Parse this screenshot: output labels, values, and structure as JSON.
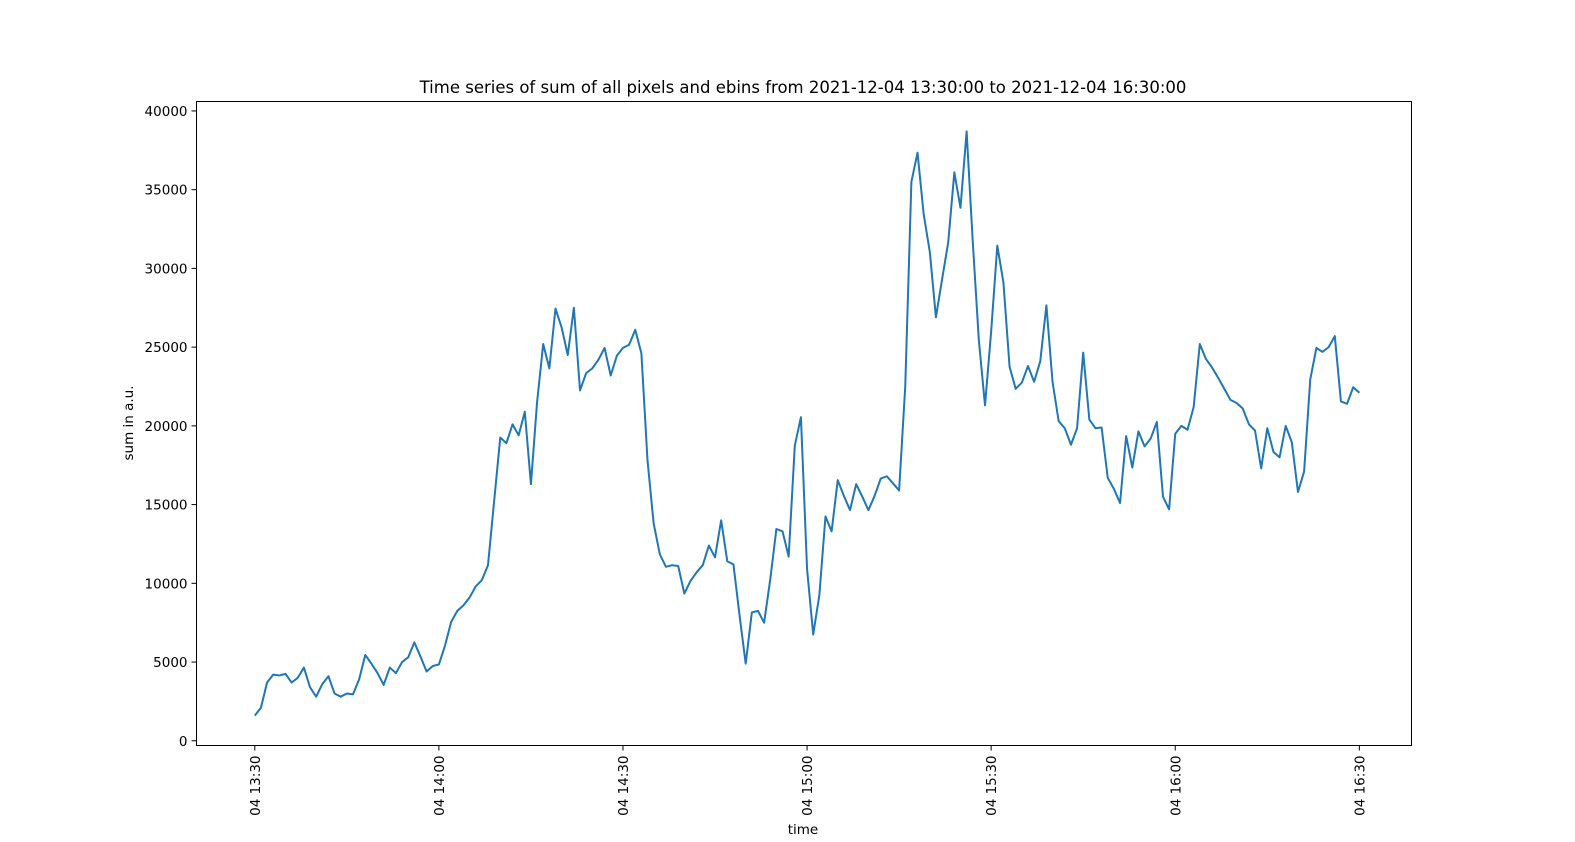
{
  "chart_data": {
    "type": "line",
    "title": "Time series of sum of all pixels and ebins from 2021-12-04 13:30:00 to 2021-12-04 16:30:00",
    "xlabel": "time",
    "ylabel": "sum in a.u.",
    "ylim": [
      -300,
      40600
    ],
    "xlim": [
      "2021-12-04 13:20:30",
      "2021-12-04 16:38:30"
    ],
    "yticks": [
      0,
      5000,
      10000,
      15000,
      20000,
      25000,
      30000,
      35000,
      40000
    ],
    "xticks": [
      {
        "t": "2021-12-04 13:30",
        "label": "04 13:30"
      },
      {
        "t": "2021-12-04 14:00",
        "label": "04 14:00"
      },
      {
        "t": "2021-12-04 14:30",
        "label": "04 14:30"
      },
      {
        "t": "2021-12-04 15:00",
        "label": "04 15:00"
      },
      {
        "t": "2021-12-04 15:30",
        "label": "04 15:30"
      },
      {
        "t": "2021-12-04 16:00",
        "label": "04 16:00"
      },
      {
        "t": "2021-12-04 16:30",
        "label": "04 16:30"
      }
    ],
    "grid": false,
    "series": [
      {
        "color": "#1f77b4",
        "start": "2021-12-04 13:30",
        "interval_minutes": 1,
        "values": [
          1600,
          2100,
          3700,
          4200,
          4150,
          4250,
          3700,
          4000,
          4650,
          3400,
          2800,
          3600,
          4100,
          3000,
          2800,
          3000,
          2950,
          3900,
          5450,
          4900,
          4300,
          3550,
          4650,
          4300,
          5000,
          5300,
          6250,
          5350,
          4400,
          4750,
          4850,
          6050,
          7550,
          8250,
          8600,
          9100,
          9800,
          10200,
          11150,
          15200,
          19250,
          18900,
          20100,
          19400,
          20900,
          16300,
          21500,
          25200,
          23650,
          27450,
          26250,
          24500,
          27500,
          22250,
          23350,
          23650,
          24200,
          24950,
          23200,
          24450,
          24950,
          25150,
          26100,
          24600,
          17800,
          13800,
          11850,
          11050,
          11150,
          11100,
          9350,
          10150,
          10700,
          11150,
          12400,
          11650,
          14000,
          11400,
          11200,
          7950,
          4900,
          8150,
          8250,
          7500,
          10250,
          13450,
          13300,
          11700,
          18750,
          20550,
          10900,
          6750,
          9250,
          14250,
          13300,
          16550,
          15550,
          14650,
          16300,
          15500,
          14650,
          15550,
          16650,
          16800,
          16350,
          15900,
          22500,
          35500,
          37350,
          33450,
          31050,
          26900,
          29300,
          31650,
          36100,
          33850,
          38700,
          31700,
          25400,
          21300,
          26000,
          31450,
          29100,
          23750,
          22350,
          22750,
          23800,
          22800,
          24100,
          27650,
          22800,
          20300,
          19850,
          18800,
          19850,
          24650,
          20400,
          19850,
          19900,
          16700,
          16000,
          15100,
          19350,
          17350,
          19650,
          18700,
          19200,
          20250,
          15500,
          14700,
          19500,
          20000,
          19750,
          21200,
          25200,
          24250,
          23700,
          23050,
          22350,
          21650,
          21450,
          21100,
          20100,
          19700,
          17300,
          19850,
          18350,
          18000,
          20000,
          18950,
          15800,
          17100,
          22950,
          24950,
          24700,
          25000,
          25700,
          21550,
          21400,
          22450,
          22100
        ]
      }
    ]
  }
}
